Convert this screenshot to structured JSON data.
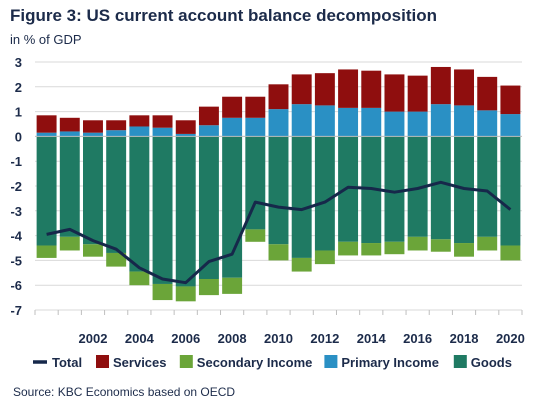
{
  "title": "Figure 3: US current account balance decomposition",
  "subtitle": "in % of GDP",
  "source": "Source: KBC Economics based on OECD",
  "chart_data": {
    "type": "bar",
    "stacked": true,
    "title": "Figure 3: US current account balance decomposition",
    "subtitle": "in % of GDP",
    "ylim": [
      -7,
      3
    ],
    "yticks": [
      3,
      2,
      1,
      0,
      -1,
      -2,
      -3,
      -4,
      -5,
      -6,
      -7
    ],
    "xtick_labels": [
      "2002",
      "2004",
      "2006",
      "2008",
      "2010",
      "2012",
      "2014",
      "2016",
      "2018",
      "2020"
    ],
    "grid": true,
    "legend_position": "bottom",
    "categories": [
      "2000",
      "2001",
      "2002",
      "2003",
      "2004",
      "2005",
      "2006",
      "2007",
      "2008",
      "2009",
      "2010",
      "2011",
      "2012",
      "2013",
      "2014",
      "2015",
      "2016",
      "2017",
      "2018",
      "2019",
      "2020"
    ],
    "series": [
      {
        "name": "Goods",
        "color": "#1f7a63",
        "values": [
          -4.4,
          -4.05,
          -4.35,
          -4.7,
          -5.45,
          -5.95,
          -6.05,
          -5.75,
          -5.7,
          -3.75,
          -4.35,
          -4.9,
          -4.6,
          -4.25,
          -4.3,
          -4.25,
          -4.05,
          -4.15,
          -4.3,
          -4.05,
          -4.4
        ]
      },
      {
        "name": "Secondary Income",
        "color": "#6ba539",
        "values": [
          -0.5,
          -0.55,
          -0.5,
          -0.55,
          -0.55,
          -0.65,
          -0.6,
          -0.65,
          -0.65,
          -0.5,
          -0.65,
          -0.55,
          -0.55,
          -0.55,
          -0.5,
          -0.5,
          -0.55,
          -0.5,
          -0.55,
          -0.55,
          -0.6
        ]
      },
      {
        "name": "Primary Income",
        "color": "#2a90c4",
        "values": [
          0.15,
          0.2,
          0.15,
          0.25,
          0.4,
          0.35,
          0.1,
          0.45,
          0.75,
          0.75,
          1.1,
          1.3,
          1.25,
          1.15,
          1.15,
          1.0,
          1.0,
          1.3,
          1.25,
          1.05,
          0.9
        ]
      },
      {
        "name": "Services",
        "color": "#8f0e0e",
        "values": [
          0.7,
          0.55,
          0.5,
          0.4,
          0.45,
          0.5,
          0.55,
          0.75,
          0.85,
          0.85,
          1.0,
          1.2,
          1.3,
          1.55,
          1.5,
          1.5,
          1.45,
          1.5,
          1.45,
          1.35,
          1.15
        ]
      },
      {
        "name": "Total",
        "color": "#16284a",
        "values": [
          -3.95,
          -3.75,
          -4.2,
          -4.55,
          -5.3,
          -5.75,
          -5.9,
          -5.05,
          -4.75,
          -2.65,
          -2.85,
          -2.95,
          -2.65,
          -2.05,
          -2.1,
          -2.25,
          -2.1,
          -1.85,
          -2.1,
          -2.2,
          -2.95
        ]
      }
    ]
  },
  "legend": [
    {
      "name": "Total",
      "color": "#16284a",
      "kind": "line"
    },
    {
      "name": "Services",
      "color": "#8f0e0e",
      "kind": "square"
    },
    {
      "name": "Secondary Income",
      "color": "#6ba539",
      "kind": "square"
    },
    {
      "name": "Primary Income",
      "color": "#2a90c4",
      "kind": "square"
    },
    {
      "name": "Goods",
      "color": "#1f7a63",
      "kind": "square"
    }
  ]
}
